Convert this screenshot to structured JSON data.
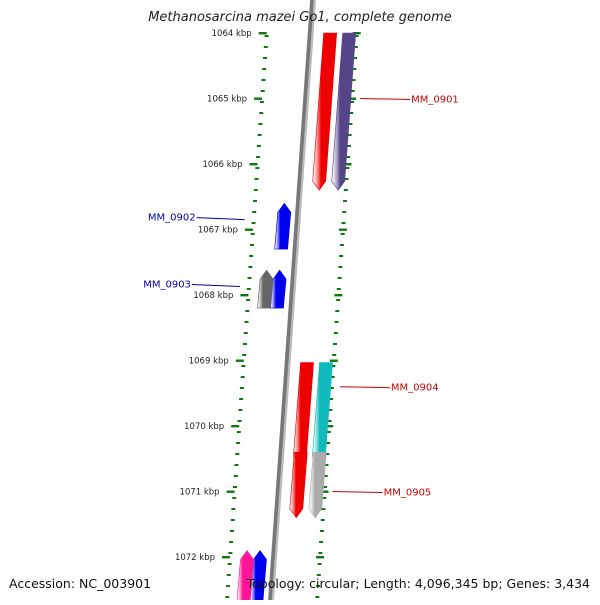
{
  "title": "Methanosarcina mazei Go1, complete genome",
  "accession": "Accession: NC_003901",
  "topology": "Topology: circular; Length: 4,096,345 bp; Genes: 3,434",
  "colors": {
    "backbone": "#777777",
    "tick": "#117711",
    "label_forward": "#cc0000",
    "label_reverse": "#0000aa"
  },
  "ticks": [
    "1064 kbp",
    "1065 kbp",
    "1066 kbp",
    "1067 kbp",
    "1068 kbp",
    "1069 kbp",
    "1070 kbp",
    "1071 kbp",
    "1072 kbp"
  ],
  "genes": [
    {
      "label": "MM_0901",
      "strand": "+",
      "start_kbp": 1064.0,
      "end_kbp": 1066.4,
      "track": 2,
      "color": "#ee0000",
      "label_kbp": 1065.0
    },
    {
      "label": "",
      "strand": "+",
      "start_kbp": 1064.0,
      "end_kbp": 1066.4,
      "track": 3,
      "color": "#554488"
    },
    {
      "label": "MM_0902",
      "strand": "-",
      "start_kbp": 1066.6,
      "end_kbp": 1067.3,
      "track": -1,
      "color": "#0000ee",
      "label_kbp": 1066.85
    },
    {
      "label": "MM_0903",
      "strand": "-",
      "start_kbp": 1067.62,
      "end_kbp": 1068.2,
      "track": -1,
      "color": "#0000ee",
      "label_kbp": 1067.87
    },
    {
      "label": "",
      "strand": "-",
      "start_kbp": 1067.62,
      "end_kbp": 1068.2,
      "track": -2,
      "color": "#666666"
    },
    {
      "label": "MM_0904",
      "strand": "+",
      "start_kbp": 1069.03,
      "end_kbp": 1070.6,
      "track": 2,
      "color": "#ee0000",
      "label_kbp": 1069.4
    },
    {
      "label": "",
      "strand": "+",
      "start_kbp": 1069.03,
      "end_kbp": 1070.6,
      "track": 3,
      "color": "#11bbbb"
    },
    {
      "label": "MM_0905",
      "strand": "+",
      "start_kbp": 1070.4,
      "end_kbp": 1071.4,
      "track": 2,
      "color": "#ee0000",
      "label_kbp": 1071.0
    },
    {
      "label": "",
      "strand": "+",
      "start_kbp": 1070.4,
      "end_kbp": 1071.4,
      "track": 3,
      "color": "#aaaaaa"
    },
    {
      "label": "",
      "strand": "-",
      "start_kbp": 1071.9,
      "end_kbp": 1072.7,
      "track": -1,
      "color": "#0000ee"
    },
    {
      "label": "",
      "strand": "-",
      "start_kbp": 1071.9,
      "end_kbp": 1072.7,
      "track": -2,
      "color": "#ff1493"
    }
  ]
}
